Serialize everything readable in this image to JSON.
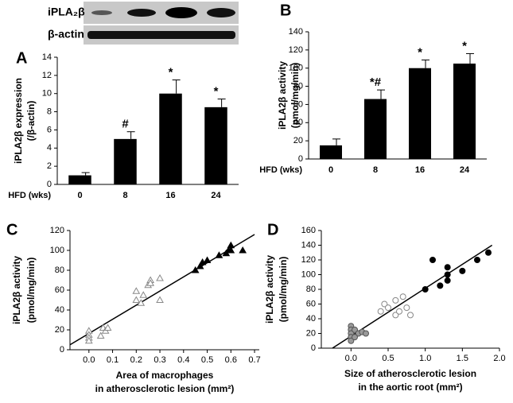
{
  "chart_data": [
    {
      "type": "bar",
      "panel_label": "A",
      "blot_labels": [
        "iPLA₂β",
        "β-actin"
      ],
      "y_label": [
        "iPLA2β expression",
        "(/β-actin)"
      ],
      "x_label": "HFD (wks)",
      "categories": [
        "0",
        "8",
        "16",
        "24"
      ],
      "values": [
        1,
        5,
        10,
        8.5
      ],
      "errors": [
        0.3,
        0.8,
        1.5,
        0.9
      ],
      "annotations": [
        null,
        "#",
        "*",
        "*"
      ],
      "color": "#000000",
      "ylim": [
        0,
        14
      ],
      "yticks": [
        0,
        2,
        4,
        6,
        8,
        10,
        12,
        14
      ]
    },
    {
      "type": "bar",
      "panel_label": "B",
      "y_label": [
        "iPLA2β activity",
        "(pmol/mg/min)"
      ],
      "x_label": "HFD (wks)",
      "categories": [
        "0",
        "8",
        "16",
        "24"
      ],
      "values": [
        15,
        66,
        100,
        105
      ],
      "errors": [
        7,
        10,
        9,
        11
      ],
      "annotations": [
        null,
        "*#",
        "*",
        "*"
      ],
      "color": "#000000",
      "ylim": [
        0,
        140
      ],
      "yticks": [
        0,
        20,
        40,
        60,
        80,
        100,
        120,
        140
      ]
    },
    {
      "type": "scatter",
      "panel_label": "C",
      "y_label": [
        "iPLA2β activity",
        "(pmol/mg/min)"
      ],
      "x_label": [
        "Area of macrophages",
        "in atherosclerotic lesion (mm²)"
      ],
      "xlim": [
        -0.08,
        0.72
      ],
      "ylim": [
        0,
        120
      ],
      "xticks": [
        {
          "value": 0,
          "label": "0.0"
        },
        0.1,
        0.2,
        0.3,
        0.4,
        0.5,
        0.6,
        0.7
      ],
      "yticks": [
        0,
        20,
        40,
        60,
        80,
        100,
        120
      ],
      "series": [
        {
          "marker": "triangle",
          "color": "#ffffff",
          "stroke": "#888888",
          "x": [
            0.0,
            0.0,
            0.0,
            0.0,
            0.05,
            0.06,
            0.07,
            0.08,
            0.2,
            0.2,
            0.22,
            0.23,
            0.25,
            0.26,
            0.26,
            0.3,
            0.3
          ],
          "values": [
            19,
            15,
            12,
            9,
            14,
            22,
            19,
            22,
            59,
            50,
            47,
            55,
            65,
            70,
            67,
            72,
            50
          ]
        },
        {
          "marker": "triangle",
          "color": "#000000",
          "stroke": "#000000",
          "x": [
            0.45,
            0.47,
            0.48,
            0.5,
            0.55,
            0.58,
            0.59,
            0.6,
            0.6,
            0.65
          ],
          "values": [
            80,
            84,
            88,
            90,
            95,
            97,
            100,
            100,
            105,
            100
          ]
        }
      ],
      "fit_line": {
        "x": [
          -0.08,
          0.7
        ],
        "y": [
          5,
          116
        ]
      }
    },
    {
      "type": "scatter",
      "panel_label": "D",
      "y_label": [
        "iPLA2β activity",
        "(pmol/mg/min)"
      ],
      "x_label": [
        "Size of atherosclerotic lesion",
        "in the aortic root (mm²)"
      ],
      "xlim": [
        -0.4,
        2.0
      ],
      "ylim": [
        0,
        160
      ],
      "xticks": [
        {
          "value": 0,
          "label": "0.0"
        },
        0.5,
        {
          "value": 1,
          "label": "1.0"
        },
        1.5,
        {
          "value": 2,
          "label": "2.0"
        }
      ],
      "yticks": [
        0,
        20,
        40,
        60,
        80,
        100,
        120,
        140,
        160
      ],
      "series": [
        {
          "marker": "circle",
          "color": "#999999",
          "stroke": "#555555",
          "x": [
            0.0,
            0.0,
            0.0,
            0.0,
            0.0,
            0.05,
            0.1,
            0.15,
            0.2,
            0.05
          ],
          "values": [
            30,
            25,
            20,
            15,
            10,
            25,
            20,
            22,
            20,
            15
          ]
        },
        {
          "marker": "circle",
          "color": "#ffffff",
          "stroke": "#888888",
          "x": [
            0.4,
            0.45,
            0.5,
            0.6,
            0.6,
            0.65,
            0.7,
            0.75,
            0.8
          ],
          "values": [
            50,
            60,
            55,
            65,
            45,
            50,
            70,
            55,
            45
          ]
        },
        {
          "marker": "circle",
          "color": "#000000",
          "stroke": "#000000",
          "x": [
            1.0,
            1.1,
            1.2,
            1.3,
            1.3,
            1.3,
            1.5,
            1.7,
            1.85
          ],
          "values": [
            80,
            120,
            85,
            110,
            100,
            92,
            105,
            120,
            130
          ]
        }
      ],
      "fit_line": {
        "x": [
          -0.25,
          1.9
        ],
        "y": [
          0,
          140
        ]
      }
    }
  ]
}
